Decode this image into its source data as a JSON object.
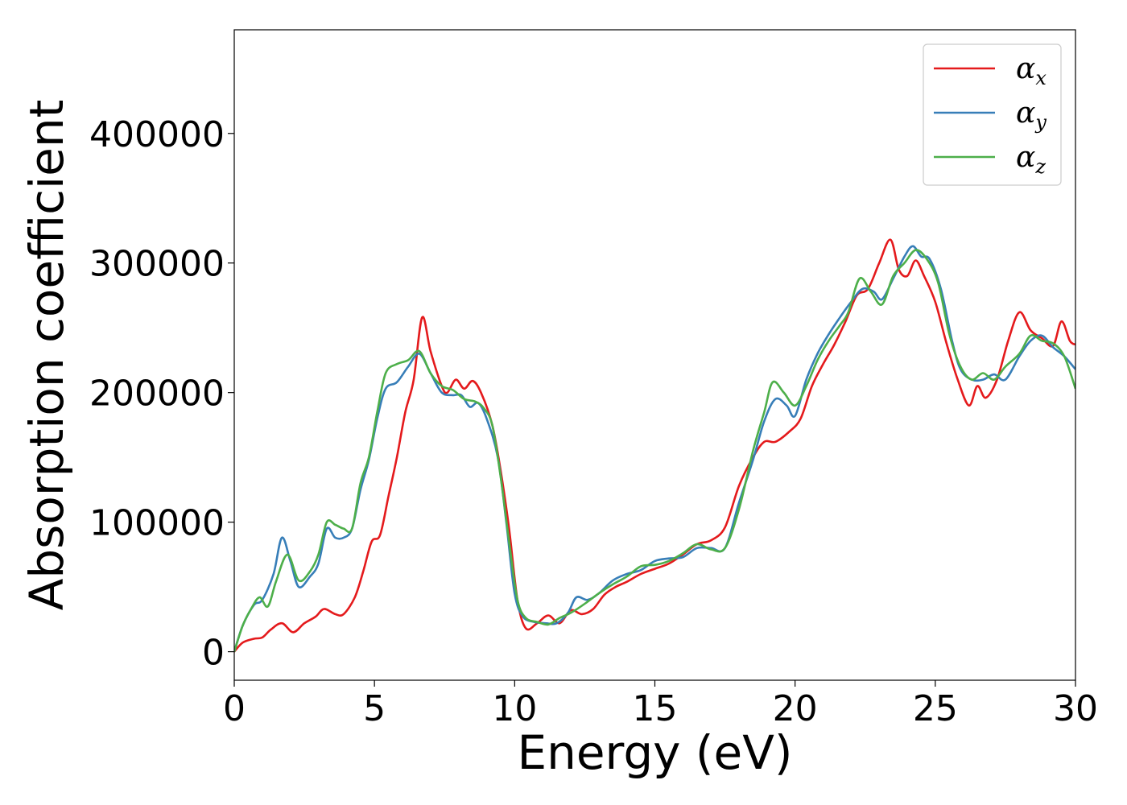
{
  "chart_data": {
    "type": "line",
    "title": "",
    "xlabel": "Energy (eV)",
    "ylabel": "Absorption coefficient",
    "xlim": [
      0,
      30
    ],
    "ylim": [
      -22000,
      480000
    ],
    "xticks": [
      0,
      5,
      10,
      15,
      20,
      25,
      30
    ],
    "yticks": [
      0,
      100000,
      200000,
      300000,
      400000
    ],
    "xtick_labels": [
      "0",
      "5",
      "10",
      "15",
      "20",
      "25",
      "30"
    ],
    "ytick_labels": [
      "0",
      "100000",
      "200000",
      "300000",
      "400000"
    ],
    "grid": false,
    "legend_position": "top-right",
    "series": [
      {
        "name": "α",
        "subscript": "x",
        "color": "#e41a1c",
        "points": [
          [
            0,
            0
          ],
          [
            0.3,
            7000
          ],
          [
            0.7,
            10000
          ],
          [
            1.0,
            11000
          ],
          [
            1.3,
            17000
          ],
          [
            1.7,
            22000
          ],
          [
            2.1,
            15000
          ],
          [
            2.5,
            22000
          ],
          [
            2.9,
            27000
          ],
          [
            3.2,
            33000
          ],
          [
            3.6,
            29000
          ],
          [
            3.9,
            29000
          ],
          [
            4.3,
            42000
          ],
          [
            4.6,
            62000
          ],
          [
            4.9,
            85000
          ],
          [
            5.2,
            90000
          ],
          [
            5.5,
            120000
          ],
          [
            5.8,
            150000
          ],
          [
            6.1,
            185000
          ],
          [
            6.4,
            210000
          ],
          [
            6.7,
            258000
          ],
          [
            7.0,
            232000
          ],
          [
            7.4,
            205000
          ],
          [
            7.6,
            200000
          ],
          [
            7.9,
            210000
          ],
          [
            8.2,
            203000
          ],
          [
            8.5,
            209000
          ],
          [
            8.8,
            200000
          ],
          [
            9.2,
            175000
          ],
          [
            9.5,
            140000
          ],
          [
            9.8,
            95000
          ],
          [
            10.1,
            40000
          ],
          [
            10.4,
            18000
          ],
          [
            10.8,
            22000
          ],
          [
            11.2,
            28000
          ],
          [
            11.6,
            22000
          ],
          [
            12.0,
            32000
          ],
          [
            12.4,
            29000
          ],
          [
            12.8,
            33000
          ],
          [
            13.2,
            44000
          ],
          [
            13.6,
            50000
          ],
          [
            14.0,
            54000
          ],
          [
            14.5,
            60000
          ],
          [
            15.0,
            64000
          ],
          [
            15.5,
            68000
          ],
          [
            16.0,
            75000
          ],
          [
            16.5,
            83000
          ],
          [
            17.0,
            86000
          ],
          [
            17.5,
            96000
          ],
          [
            18.0,
            128000
          ],
          [
            18.5,
            150000
          ],
          [
            18.9,
            162000
          ],
          [
            19.3,
            162000
          ],
          [
            19.8,
            170000
          ],
          [
            20.2,
            180000
          ],
          [
            20.6,
            205000
          ],
          [
            21.0,
            222000
          ],
          [
            21.4,
            237000
          ],
          [
            21.8,
            255000
          ],
          [
            22.2,
            275000
          ],
          [
            22.6,
            280000
          ],
          [
            23.0,
            300000
          ],
          [
            23.4,
            318000
          ],
          [
            23.7,
            295000
          ],
          [
            24.0,
            290000
          ],
          [
            24.3,
            302000
          ],
          [
            24.6,
            290000
          ],
          [
            25.0,
            270000
          ],
          [
            25.4,
            238000
          ],
          [
            25.8,
            210000
          ],
          [
            26.2,
            190000
          ],
          [
            26.5,
            205000
          ],
          [
            26.8,
            196000
          ],
          [
            27.2,
            210000
          ],
          [
            27.6,
            240000
          ],
          [
            28.0,
            262000
          ],
          [
            28.4,
            248000
          ],
          [
            28.8,
            242000
          ],
          [
            29.2,
            236000
          ],
          [
            29.5,
            255000
          ],
          [
            29.8,
            240000
          ],
          [
            30.0,
            237000
          ]
        ]
      },
      {
        "name": "α",
        "subscript": "y",
        "color": "#377eb8",
        "points": [
          [
            0,
            0
          ],
          [
            0.3,
            20000
          ],
          [
            0.7,
            36000
          ],
          [
            1.0,
            40000
          ],
          [
            1.4,
            60000
          ],
          [
            1.7,
            88000
          ],
          [
            2.0,
            70000
          ],
          [
            2.3,
            50000
          ],
          [
            2.7,
            58000
          ],
          [
            3.0,
            68000
          ],
          [
            3.3,
            95000
          ],
          [
            3.6,
            88000
          ],
          [
            3.9,
            88000
          ],
          [
            4.2,
            95000
          ],
          [
            4.5,
            125000
          ],
          [
            4.8,
            148000
          ],
          [
            5.1,
            180000
          ],
          [
            5.4,
            203000
          ],
          [
            5.8,
            208000
          ],
          [
            6.2,
            220000
          ],
          [
            6.6,
            230000
          ],
          [
            7.0,
            215000
          ],
          [
            7.4,
            200000
          ],
          [
            7.8,
            198000
          ],
          [
            8.1,
            198000
          ],
          [
            8.4,
            189000
          ],
          [
            8.7,
            192000
          ],
          [
            9.0,
            180000
          ],
          [
            9.4,
            150000
          ],
          [
            9.7,
            100000
          ],
          [
            10.0,
            45000
          ],
          [
            10.3,
            27000
          ],
          [
            10.7,
            23000
          ],
          [
            11.1,
            22000
          ],
          [
            11.5,
            22000
          ],
          [
            11.9,
            30000
          ],
          [
            12.2,
            42000
          ],
          [
            12.6,
            40000
          ],
          [
            13.0,
            45000
          ],
          [
            13.5,
            55000
          ],
          [
            14.0,
            60000
          ],
          [
            14.5,
            63000
          ],
          [
            15.0,
            70000
          ],
          [
            15.5,
            72000
          ],
          [
            16.0,
            73000
          ],
          [
            16.5,
            80000
          ],
          [
            17.0,
            80000
          ],
          [
            17.5,
            80000
          ],
          [
            18.0,
            115000
          ],
          [
            18.5,
            148000
          ],
          [
            18.9,
            178000
          ],
          [
            19.3,
            195000
          ],
          [
            19.7,
            190000
          ],
          [
            20.0,
            182000
          ],
          [
            20.4,
            210000
          ],
          [
            20.8,
            230000
          ],
          [
            21.2,
            245000
          ],
          [
            21.6,
            258000
          ],
          [
            22.0,
            270000
          ],
          [
            22.4,
            280000
          ],
          [
            22.8,
            278000
          ],
          [
            23.1,
            272000
          ],
          [
            23.5,
            288000
          ],
          [
            23.9,
            305000
          ],
          [
            24.2,
            313000
          ],
          [
            24.5,
            305000
          ],
          [
            24.8,
            303000
          ],
          [
            25.2,
            280000
          ],
          [
            25.6,
            240000
          ],
          [
            25.9,
            218000
          ],
          [
            26.3,
            210000
          ],
          [
            26.7,
            210000
          ],
          [
            27.1,
            214000
          ],
          [
            27.5,
            210000
          ],
          [
            28.0,
            228000
          ],
          [
            28.4,
            240000
          ],
          [
            28.8,
            244000
          ],
          [
            29.2,
            235000
          ],
          [
            29.6,
            228000
          ],
          [
            30.0,
            218000
          ]
        ]
      },
      {
        "name": "α",
        "subscript": "z",
        "color": "#4daf4a",
        "points": [
          [
            0,
            0
          ],
          [
            0.3,
            20000
          ],
          [
            0.6,
            33000
          ],
          [
            0.9,
            42000
          ],
          [
            1.2,
            35000
          ],
          [
            1.5,
            55000
          ],
          [
            1.9,
            75000
          ],
          [
            2.3,
            55000
          ],
          [
            2.7,
            62000
          ],
          [
            3.0,
            75000
          ],
          [
            3.3,
            100000
          ],
          [
            3.6,
            98000
          ],
          [
            3.9,
            95000
          ],
          [
            4.2,
            95000
          ],
          [
            4.5,
            130000
          ],
          [
            4.8,
            150000
          ],
          [
            5.1,
            185000
          ],
          [
            5.4,
            215000
          ],
          [
            5.8,
            222000
          ],
          [
            6.2,
            225000
          ],
          [
            6.6,
            232000
          ],
          [
            7.0,
            215000
          ],
          [
            7.4,
            205000
          ],
          [
            7.8,
            202000
          ],
          [
            8.2,
            195000
          ],
          [
            8.6,
            193000
          ],
          [
            8.9,
            188000
          ],
          [
            9.2,
            175000
          ],
          [
            9.5,
            135000
          ],
          [
            9.8,
            85000
          ],
          [
            10.1,
            40000
          ],
          [
            10.4,
            26000
          ],
          [
            10.8,
            23000
          ],
          [
            11.2,
            21000
          ],
          [
            11.6,
            26000
          ],
          [
            12.0,
            30000
          ],
          [
            12.5,
            37000
          ],
          [
            13.0,
            45000
          ],
          [
            13.5,
            52000
          ],
          [
            14.0,
            58000
          ],
          [
            14.5,
            66000
          ],
          [
            15.0,
            67000
          ],
          [
            15.5,
            70000
          ],
          [
            16.0,
            76000
          ],
          [
            16.5,
            83000
          ],
          [
            17.0,
            79000
          ],
          [
            17.5,
            80000
          ],
          [
            18.0,
            110000
          ],
          [
            18.5,
            155000
          ],
          [
            18.9,
            185000
          ],
          [
            19.2,
            208000
          ],
          [
            19.6,
            200000
          ],
          [
            20.0,
            190000
          ],
          [
            20.4,
            205000
          ],
          [
            20.8,
            225000
          ],
          [
            21.2,
            240000
          ],
          [
            21.6,
            252000
          ],
          [
            21.9,
            262000
          ],
          [
            22.3,
            288000
          ],
          [
            22.7,
            278000
          ],
          [
            23.1,
            268000
          ],
          [
            23.5,
            290000
          ],
          [
            23.9,
            300000
          ],
          [
            24.3,
            310000
          ],
          [
            24.7,
            303000
          ],
          [
            25.1,
            285000
          ],
          [
            25.5,
            245000
          ],
          [
            25.9,
            220000
          ],
          [
            26.3,
            210000
          ],
          [
            26.7,
            215000
          ],
          [
            27.1,
            210000
          ],
          [
            27.5,
            220000
          ],
          [
            28.0,
            230000
          ],
          [
            28.4,
            244000
          ],
          [
            28.8,
            240000
          ],
          [
            29.2,
            238000
          ],
          [
            29.6,
            228000
          ],
          [
            30.0,
            203000
          ]
        ]
      }
    ]
  }
}
